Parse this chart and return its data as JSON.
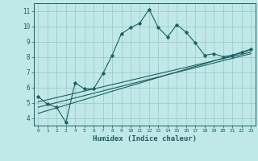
{
  "title": "",
  "xlabel": "Humidex (Indice chaleur)",
  "ylabel": "",
  "bg_color": "#c0e8e8",
  "grid_color": "#a0cccc",
  "line_color": "#1a6060",
  "xlim": [
    -0.5,
    23.5
  ],
  "ylim": [
    3.5,
    11.5
  ],
  "xticks": [
    0,
    1,
    2,
    3,
    4,
    5,
    6,
    7,
    8,
    9,
    10,
    11,
    12,
    13,
    14,
    15,
    16,
    17,
    18,
    19,
    20,
    21,
    22,
    23
  ],
  "yticks": [
    4,
    5,
    6,
    7,
    8,
    9,
    10,
    11
  ],
  "curve1_x": [
    0,
    1,
    2,
    3,
    4,
    5,
    6,
    7,
    8,
    9,
    10,
    11,
    12,
    13,
    14,
    15,
    16,
    17,
    18,
    19,
    20,
    21,
    22,
    23
  ],
  "curve1_y": [
    5.4,
    4.9,
    4.7,
    3.7,
    6.3,
    5.9,
    5.9,
    6.9,
    8.1,
    9.5,
    9.9,
    10.2,
    11.1,
    9.9,
    9.3,
    10.1,
    9.6,
    8.9,
    8.1,
    8.2,
    8.0,
    8.1,
    8.3,
    8.5
  ],
  "line2_x": [
    0,
    23
  ],
  "line2_y": [
    4.3,
    8.45
  ],
  "line3_x": [
    0,
    23
  ],
  "line3_y": [
    4.7,
    8.2
  ],
  "line4_x": [
    0,
    23
  ],
  "line4_y": [
    5.05,
    8.3
  ]
}
